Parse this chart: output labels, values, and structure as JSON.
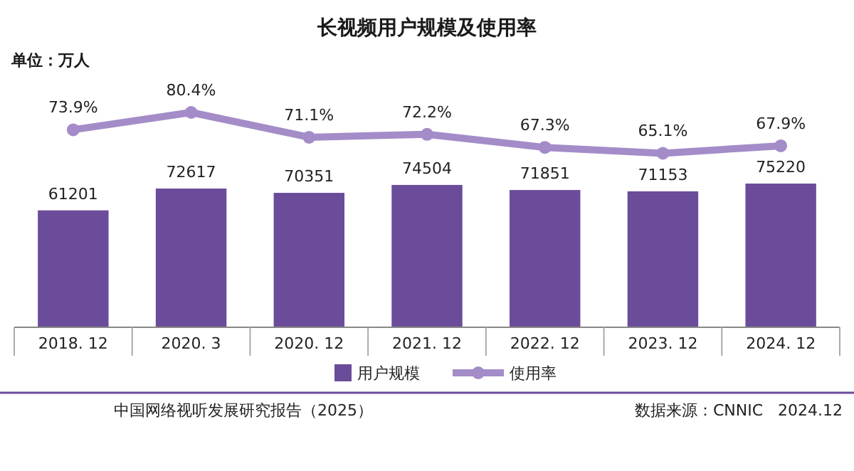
{
  "chart_data": [
    {
      "type": "bar",
      "categories": [
        "2018. 12",
        "2020. 3",
        "2020. 12",
        "2021. 12",
        "2022. 12",
        "2023. 12",
        "2024. 12"
      ],
      "series": [
        {
          "name": "用户规模",
          "type": "bar",
          "color": "#6b4c9a",
          "values": [
            61201,
            72617,
            70351,
            74504,
            71851,
            71153,
            75220
          ]
        }
      ],
      "data_labels": true,
      "legend": "bottom",
      "annotations": [
        "单位：万人",
        "中国网络视听发展研究报告（2025）",
        "数据来源：CNNIC   2024.12"
      ]
    },
    {
      "type": "line",
      "title": "长视频用户规模及使用率",
      "tick_labels": false,
      "categories": [
        "2018. 12",
        "2020. 3",
        "2020. 12",
        "2021. 12",
        "2022. 12",
        "2023. 12",
        "2024. 12"
      ],
      "series": [
        {
          "name": "使用率",
          "color": "#a48cc8",
          "values": [
            73.9,
            80.4,
            71.1,
            72.2,
            67.3,
            65.1,
            67.9
          ],
          "value_labels": [
            "73.9%",
            "80.4%",
            "71.1%",
            "72.2%",
            "67.3%",
            "65.1%",
            "67.9%"
          ]
        }
      ],
      "marker": "circle",
      "legend": "bottom"
    }
  ]
}
